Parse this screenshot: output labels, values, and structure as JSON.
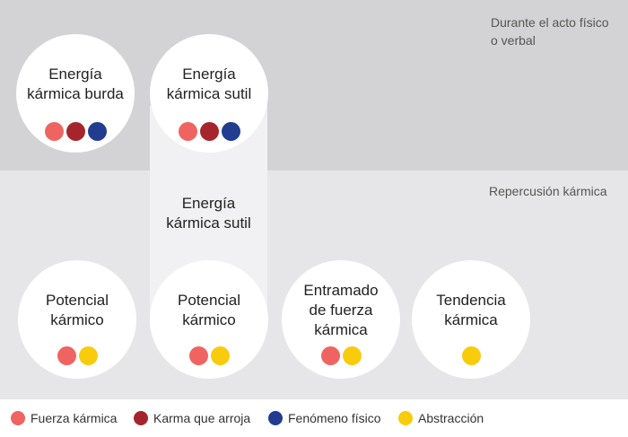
{
  "colors": {
    "fuerza": "#ef6461",
    "karma": "#a4262c",
    "fenomeno": "#223d8f",
    "abstraccion": "#f8cc0c"
  },
  "bands": {
    "top_label": "Durante el acto físico\no verbal",
    "bottom_label": "Repercusión kármica"
  },
  "nodes": [
    {
      "title": "Energía\nkármica burda",
      "dots": [
        "fuerza",
        "karma",
        "fenomeno"
      ]
    },
    {
      "title": "Energía\nkármica sutil",
      "dots": [
        "fuerza",
        "karma",
        "fenomeno"
      ]
    },
    {
      "title": "Potencial\nkármico",
      "dots": [
        "fuerza",
        "abstraccion"
      ]
    },
    {
      "title": "Potencial\nkármico",
      "dots": [
        "fuerza",
        "abstraccion"
      ]
    },
    {
      "title": "Entramado\nde fuerza\nkármica",
      "dots": [
        "fuerza",
        "abstraccion"
      ]
    },
    {
      "title": "Tendencia\nkármica",
      "dots": [
        "abstraccion"
      ]
    }
  ],
  "middle_label": "Energía\nkármica sutil",
  "legend": [
    {
      "key": "fuerza",
      "label": "Fuerza kármica"
    },
    {
      "key": "karma",
      "label": "Karma que arroja"
    },
    {
      "key": "fenomeno",
      "label": "Fenómeno físico"
    },
    {
      "key": "abstraccion",
      "label": "Abstracción"
    }
  ]
}
